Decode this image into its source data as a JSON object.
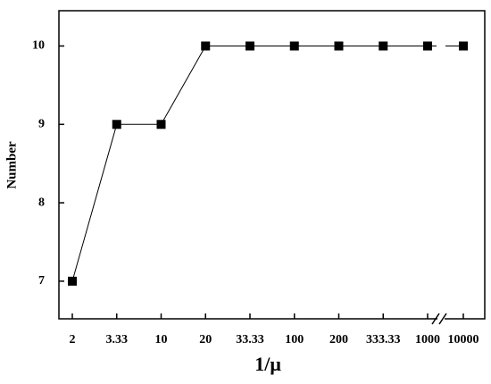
{
  "chart_data": {
    "type": "line",
    "x_label": "1/μ",
    "y_label": "Number",
    "categories": [
      "2",
      "3.33",
      "10",
      "20",
      "33.33",
      "100",
      "200",
      "333.33",
      "1000",
      "10000"
    ],
    "series": [
      {
        "name": "Number",
        "color": "#000000",
        "values": [
          7,
          9,
          9,
          10,
          10,
          10,
          10,
          10,
          10,
          10
        ]
      }
    ],
    "ylim": [
      6.52,
      10.45
    ],
    "yticks": [
      7,
      8,
      9,
      10
    ],
    "grid": false
  }
}
